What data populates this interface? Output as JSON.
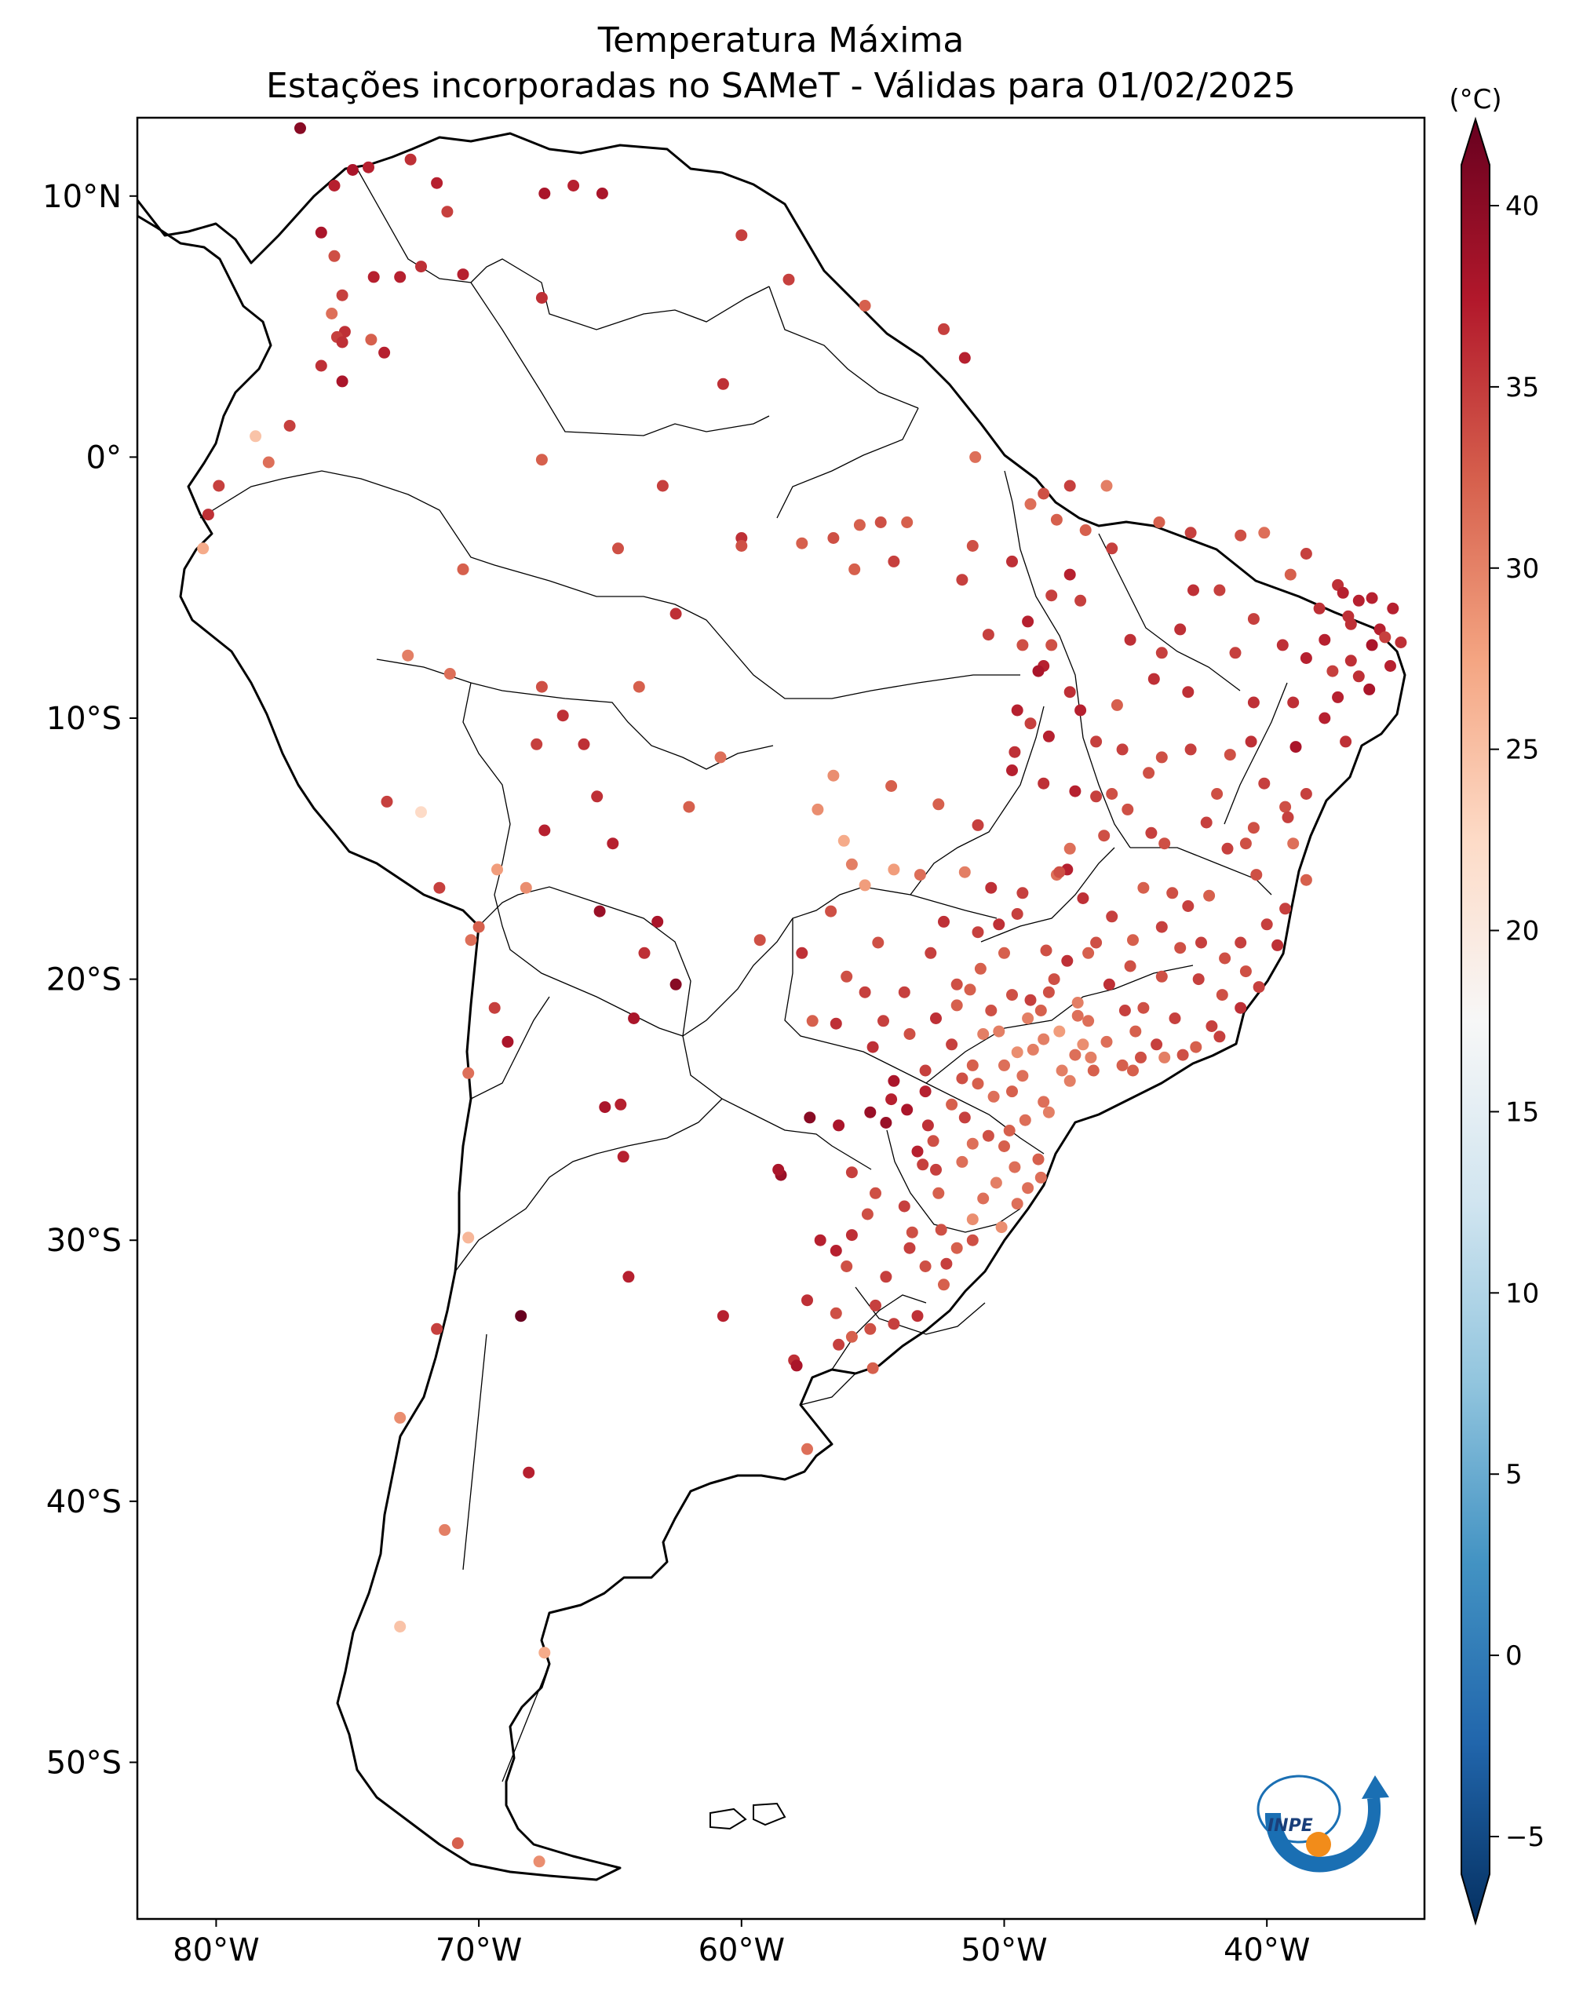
{
  "map": {
    "title_line1": "Temperatura Máxima",
    "title_line2": "Estações incorporadas no SAMeT - Válidas para 01/02/2025",
    "lat_labels": [
      "10°N",
      "0°",
      "10°S",
      "20°S",
      "30°S",
      "40°S",
      "50°S"
    ],
    "lat_values": [
      10,
      0,
      -10,
      -20,
      -30,
      -40,
      -50
    ],
    "lon_labels": [
      "80°W",
      "70°W",
      "60°W",
      "50°W",
      "40°W"
    ],
    "lon_values": [
      -80,
      -70,
      -60,
      -50,
      -40
    ],
    "extent": {
      "lon_min": -83,
      "lon_max": -34,
      "lat_min": -56,
      "lat_max": 13
    },
    "logo_text": "INPE"
  },
  "colorbar": {
    "unit": "(°C)",
    "ticks": [
      40,
      35,
      30,
      25,
      20,
      15,
      10,
      5,
      0,
      -5
    ],
    "min": -5,
    "max": 40,
    "colors": [
      "#053061",
      "#2166ac",
      "#4393c3",
      "#92c5de",
      "#d1e5f0",
      "#f7f7f7",
      "#fddbc7",
      "#f4a582",
      "#d6604d",
      "#b2182b",
      "#67001f"
    ]
  },
  "stations": [
    [
      -76.8,
      12.6,
      38
    ],
    [
      -75.5,
      10.4,
      35
    ],
    [
      -74.8,
      11.0,
      36
    ],
    [
      -74.2,
      11.1,
      35
    ],
    [
      -72.6,
      11.4,
      34
    ],
    [
      -71.6,
      10.5,
      35
    ],
    [
      -67.5,
      10.1,
      36
    ],
    [
      -66.4,
      10.4,
      35
    ],
    [
      -65.3,
      10.1,
      36
    ],
    [
      -71.2,
      9.4,
      33
    ],
    [
      -76.0,
      8.6,
      36
    ],
    [
      -75.5,
      7.7,
      32
    ],
    [
      -73.0,
      6.9,
      35
    ],
    [
      -72.2,
      7.3,
      34
    ],
    [
      -74.0,
      6.9,
      35
    ],
    [
      -70.6,
      7.0,
      35
    ],
    [
      -67.6,
      6.1,
      34
    ],
    [
      -75.6,
      5.5,
      30
    ],
    [
      -75.2,
      6.2,
      33
    ],
    [
      -75.1,
      4.8,
      34
    ],
    [
      -75.4,
      4.6,
      33
    ],
    [
      -76.0,
      3.5,
      34
    ],
    [
      -74.1,
      4.5,
      31
    ],
    [
      -73.6,
      4.0,
      35
    ],
    [
      -75.2,
      2.9,
      36
    ],
    [
      -75.2,
      4.4,
      34
    ],
    [
      -77.2,
      1.2,
      33
    ],
    [
      -78.5,
      0.8,
      24
    ],
    [
      -78.0,
      -0.2,
      30
    ],
    [
      -79.9,
      -1.1,
      33
    ],
    [
      -80.3,
      -2.2,
      34
    ],
    [
      -80.5,
      -3.5,
      26
    ],
    [
      -60.0,
      8.5,
      33
    ],
    [
      -58.2,
      6.8,
      33
    ],
    [
      -55.3,
      5.8,
      31
    ],
    [
      -52.3,
      4.9,
      33
    ],
    [
      -51.5,
      3.8,
      35
    ],
    [
      -51.1,
      0.0,
      30
    ],
    [
      -60.7,
      2.8,
      34
    ],
    [
      -67.6,
      -0.1,
      31
    ],
    [
      -63.0,
      -1.1,
      33
    ],
    [
      -60.0,
      -3.1,
      34
    ],
    [
      -60.0,
      -3.4,
      32
    ],
    [
      -62.5,
      -6.0,
      34
    ],
    [
      -64.7,
      -3.5,
      32
    ],
    [
      -57.7,
      -3.3,
      31
    ],
    [
      -56.5,
      -3.1,
      32
    ],
    [
      -55.5,
      -2.6,
      31
    ],
    [
      -54.7,
      -2.5,
      32
    ],
    [
      -53.7,
      -2.5,
      31
    ],
    [
      -51.2,
      -3.4,
      32
    ],
    [
      -48.5,
      -1.4,
      32
    ],
    [
      -47.5,
      -1.1,
      33
    ],
    [
      -46.1,
      -1.1,
      29
    ],
    [
      -44.1,
      -2.5,
      31
    ],
    [
      -49.7,
      -4.0,
      34
    ],
    [
      -47.5,
      -4.5,
      35
    ],
    [
      -54.2,
      -4.0,
      33
    ],
    [
      -55.7,
      -4.3,
      31
    ],
    [
      -51.6,
      -4.7,
      33
    ],
    [
      -48.2,
      -5.3,
      33
    ],
    [
      -47.1,
      -5.5,
      33
    ],
    [
      -49.1,
      -6.3,
      35
    ],
    [
      -50.6,
      -6.8,
      33
    ],
    [
      -49.3,
      -7.2,
      32
    ],
    [
      -48.2,
      -7.2,
      32
    ],
    [
      -48.5,
      -8.0,
      35
    ],
    [
      -47.5,
      -9.0,
      34
    ],
    [
      -49.0,
      -10.2,
      33
    ],
    [
      -48.3,
      -10.7,
      35
    ],
    [
      -49.6,
      -11.3,
      34
    ],
    [
      -48.5,
      -12.5,
      34
    ],
    [
      -47.3,
      -12.8,
      35
    ],
    [
      -49.7,
      -12.0,
      35
    ],
    [
      -46.5,
      -13.0,
      33
    ],
    [
      -46.2,
      -14.5,
      32
    ],
    [
      -47.5,
      -15.0,
      30
    ],
    [
      -49.3,
      -16.7,
      33
    ],
    [
      -48.0,
      -16.0,
      30
    ],
    [
      -47.6,
      -15.8,
      35
    ],
    [
      -50.2,
      -17.9,
      34
    ],
    [
      -51.0,
      -18.2,
      33
    ],
    [
      -48.4,
      -18.9,
      32
    ],
    [
      -47.6,
      -19.3,
      34
    ],
    [
      -48.3,
      -20.5,
      32
    ],
    [
      -49.0,
      -20.8,
      33
    ],
    [
      -50.5,
      -21.2,
      32
    ],
    [
      -51.3,
      -20.4,
      31
    ],
    [
      -53.2,
      -16.0,
      30
    ],
    [
      -55.8,
      -15.6,
      29
    ],
    [
      -56.1,
      -14.7,
      26
    ],
    [
      -57.1,
      -13.5,
      28
    ],
    [
      -56.5,
      -12.2,
      28
    ],
    [
      -54.3,
      -12.6,
      31
    ],
    [
      -52.5,
      -13.3,
      31
    ],
    [
      -51.0,
      -14.1,
      33
    ],
    [
      -51.5,
      -15.9,
      29
    ],
    [
      -54.2,
      -15.8,
      27
    ],
    [
      -55.3,
      -16.4,
      27
    ],
    [
      -56.6,
      -17.4,
      32
    ],
    [
      -54.8,
      -18.6,
      32
    ],
    [
      -57.7,
      -19.0,
      34
    ],
    [
      -56.0,
      -19.9,
      32
    ],
    [
      -55.3,
      -20.5,
      33
    ],
    [
      -54.6,
      -21.6,
      33
    ],
    [
      -53.6,
      -22.1,
      32
    ],
    [
      -55.0,
      -22.6,
      34
    ],
    [
      -54.2,
      -23.9,
      36
    ],
    [
      -53.0,
      -23.5,
      33
    ],
    [
      -56.4,
      -21.7,
      34
    ],
    [
      -57.3,
      -21.6,
      31
    ],
    [
      -59.3,
      -18.5,
      32
    ],
    [
      -62.0,
      -13.4,
      31
    ],
    [
      -60.8,
      -11.5,
      30
    ],
    [
      -63.9,
      -8.8,
      31
    ],
    [
      -66.8,
      -9.9,
      34
    ],
    [
      -67.8,
      -11.0,
      33
    ],
    [
      -67.6,
      -8.8,
      32
    ],
    [
      -70.6,
      -4.3,
      31
    ],
    [
      -72.7,
      -7.6,
      29
    ],
    [
      -71.1,
      -8.3,
      30
    ],
    [
      -73.5,
      -13.2,
      33
    ],
    [
      -72.2,
      -13.6,
      22
    ],
    [
      -71.5,
      -16.5,
      33
    ],
    [
      -70.0,
      -18.0,
      31
    ],
    [
      -70.3,
      -18.5,
      30
    ],
    [
      -69.3,
      -15.8,
      27
    ],
    [
      -68.2,
      -16.5,
      28
    ],
    [
      -67.5,
      -14.3,
      35
    ],
    [
      -66.0,
      -11.0,
      34
    ],
    [
      -65.5,
      -13.0,
      34
    ],
    [
      -64.9,
      -14.8,
      35
    ],
    [
      -63.2,
      -17.8,
      36
    ],
    [
      -65.4,
      -17.4,
      37
    ],
    [
      -63.7,
      -19.0,
      34
    ],
    [
      -64.1,
      -21.5,
      36
    ],
    [
      -62.5,
      -20.2,
      38
    ],
    [
      -69.4,
      -21.1,
      33
    ],
    [
      -68.9,
      -22.4,
      36
    ],
    [
      -70.4,
      -23.6,
      30
    ],
    [
      -64.6,
      -24.8,
      35
    ],
    [
      -65.2,
      -24.9,
      36
    ],
    [
      -64.5,
      -26.8,
      35
    ],
    [
      -58.5,
      -27.5,
      37
    ],
    [
      -58.6,
      -27.3,
      36
    ],
    [
      -57.4,
      -25.3,
      38
    ],
    [
      -55.8,
      -27.4,
      33
    ],
    [
      -56.3,
      -25.6,
      36
    ],
    [
      -55.1,
      -25.1,
      37
    ],
    [
      -70.4,
      -29.9,
      25
    ],
    [
      -64.3,
      -31.4,
      35
    ],
    [
      -60.7,
      -32.9,
      35
    ],
    [
      -68.4,
      -32.9,
      40
    ],
    [
      -71.6,
      -33.4,
      33
    ],
    [
      -58.0,
      -34.6,
      34
    ],
    [
      -57.5,
      -38.0,
      30
    ],
    [
      -73.0,
      -36.8,
      28
    ],
    [
      -71.3,
      -41.1,
      29
    ],
    [
      -68.1,
      -38.9,
      35
    ],
    [
      -67.5,
      -45.8,
      26
    ],
    [
      -73.0,
      -44.8,
      24
    ],
    [
      -70.8,
      -53.1,
      31
    ],
    [
      -67.7,
      -53.8,
      28
    ],
    [
      -41.0,
      -3.0,
      32
    ],
    [
      -40.1,
      -2.9,
      30
    ],
    [
      -38.5,
      -3.7,
      33
    ],
    [
      -39.1,
      -4.5,
      31
    ],
    [
      -37.3,
      -4.9,
      34
    ],
    [
      -36.5,
      -5.5,
      35
    ],
    [
      -35.2,
      -5.8,
      35
    ],
    [
      -36.9,
      -6.1,
      34
    ],
    [
      -35.7,
      -6.6,
      35
    ],
    [
      -36.0,
      -7.2,
      36
    ],
    [
      -34.9,
      -7.1,
      34
    ],
    [
      -35.3,
      -8.0,
      35
    ],
    [
      -36.5,
      -8.4,
      34
    ],
    [
      -37.5,
      -8.2,
      33
    ],
    [
      -38.5,
      -7.7,
      35
    ],
    [
      -39.4,
      -7.2,
      34
    ],
    [
      -40.5,
      -6.2,
      33
    ],
    [
      -41.8,
      -5.1,
      33
    ],
    [
      -42.8,
      -5.1,
      34
    ],
    [
      -43.3,
      -6.6,
      34
    ],
    [
      -44.0,
      -7.5,
      33
    ],
    [
      -45.2,
      -7.0,
      34
    ],
    [
      -40.5,
      -9.4,
      34
    ],
    [
      -39.0,
      -9.4,
      34
    ],
    [
      -37.8,
      -10.0,
      35
    ],
    [
      -37.0,
      -10.9,
      34
    ],
    [
      -38.5,
      -12.9,
      33
    ],
    [
      -39.3,
      -13.4,
      32
    ],
    [
      -40.8,
      -14.8,
      32
    ],
    [
      -39.0,
      -14.8,
      30
    ],
    [
      -41.9,
      -12.9,
      32
    ],
    [
      -42.9,
      -11.2,
      33
    ],
    [
      -44.5,
      -12.1,
      32
    ],
    [
      -45.3,
      -13.5,
      32
    ],
    [
      -43.6,
      -16.7,
      32
    ],
    [
      -42.2,
      -16.8,
      31
    ],
    [
      -40.4,
      -16.0,
      32
    ],
    [
      -40.0,
      -17.9,
      33
    ],
    [
      -39.6,
      -18.7,
      34
    ],
    [
      -40.3,
      -20.3,
      33
    ],
    [
      -41.6,
      -19.2,
      32
    ],
    [
      -41.0,
      -21.1,
      34
    ],
    [
      -42.1,
      -21.8,
      33
    ],
    [
      -43.2,
      -22.9,
      32
    ],
    [
      -44.2,
      -22.5,
      33
    ],
    [
      -45.4,
      -21.2,
      33
    ],
    [
      -46.0,
      -20.2,
      34
    ],
    [
      -44.0,
      -19.9,
      32
    ],
    [
      -43.3,
      -18.8,
      32
    ],
    [
      -42.6,
      -20.0,
      33
    ],
    [
      -45.1,
      -18.5,
      31
    ],
    [
      -46.5,
      -18.6,
      32
    ],
    [
      -47.0,
      -16.9,
      34
    ],
    [
      -44.7,
      -16.5,
      31
    ],
    [
      -46.8,
      -21.6,
      30
    ],
    [
      -47.3,
      -22.9,
      30
    ],
    [
      -46.6,
      -23.5,
      31
    ],
    [
      -47.5,
      -23.9,
      29
    ],
    [
      -48.5,
      -22.3,
      29
    ],
    [
      -49.5,
      -22.8,
      28
    ],
    [
      -50.0,
      -23.3,
      30
    ],
    [
      -51.2,
      -23.3,
      31
    ],
    [
      -52.0,
      -22.5,
      33
    ],
    [
      -51.6,
      -23.8,
      32
    ],
    [
      -50.4,
      -24.5,
      30
    ],
    [
      -49.2,
      -25.4,
      30
    ],
    [
      -48.7,
      -26.9,
      31
    ],
    [
      -49.1,
      -28.0,
      30
    ],
    [
      -48.6,
      -27.6,
      30
    ],
    [
      -50.3,
      -27.8,
      29
    ],
    [
      -51.2,
      -26.3,
      30
    ],
    [
      -52.7,
      -26.2,
      32
    ],
    [
      -53.1,
      -27.1,
      33
    ],
    [
      -52.5,
      -28.2,
      31
    ],
    [
      -51.2,
      -29.2,
      28
    ],
    [
      -51.2,
      -30.0,
      32
    ],
    [
      -52.2,
      -30.9,
      33
    ],
    [
      -53.5,
      -29.7,
      32
    ],
    [
      -54.9,
      -28.2,
      32
    ],
    [
      -55.8,
      -29.8,
      34
    ],
    [
      -56.4,
      -30.4,
      35
    ],
    [
      -57.0,
      -30.0,
      35
    ],
    [
      -54.5,
      -31.4,
      33
    ],
    [
      -52.3,
      -31.7,
      31
    ],
    [
      -53.3,
      -32.9,
      34
    ],
    [
      -54.2,
      -33.2,
      33
    ],
    [
      -55.1,
      -33.4,
      32
    ],
    [
      -56.3,
      -34.0,
      33
    ],
    [
      -55.0,
      -34.9,
      31
    ],
    [
      -56.4,
      -32.8,
      32
    ],
    [
      -57.9,
      -34.8,
      36
    ],
    [
      -57.5,
      -32.3,
      34
    ],
    [
      -52.4,
      -29.6,
      32
    ],
    [
      -50.1,
      -29.5,
      28
    ],
    [
      -49.5,
      -28.6,
      30
    ],
    [
      -47.9,
      -15.9,
      32
    ],
    [
      -44.0,
      -11.5,
      32
    ],
    [
      -40.6,
      -10.9,
      34
    ],
    [
      -41.5,
      -15.0,
      33
    ],
    [
      -43.9,
      -14.8,
      32
    ],
    [
      -45.7,
      -9.5,
      31
    ],
    [
      -43.0,
      -9.0,
      34
    ],
    [
      -44.3,
      -8.5,
      34
    ],
    [
      -41.2,
      -7.5,
      33
    ],
    [
      -38.0,
      -5.8,
      34
    ],
    [
      -36.0,
      -5.4,
      35
    ],
    [
      -37.1,
      -5.2,
      35
    ],
    [
      -36.8,
      -6.4,
      34
    ],
    [
      -35.5,
      -6.9,
      33
    ],
    [
      -37.8,
      -7.0,
      35
    ],
    [
      -42.9,
      -2.9,
      33
    ],
    [
      -45.9,
      -3.5,
      33
    ],
    [
      -46.9,
      -2.8,
      31
    ],
    [
      -48.0,
      -2.4,
      31
    ],
    [
      -49.0,
      -1.8,
      30
    ],
    [
      -46.5,
      -10.9,
      33
    ],
    [
      -47.1,
      -9.7,
      35
    ],
    [
      -48.7,
      -8.2,
      36
    ],
    [
      -49.5,
      -9.7,
      35
    ],
    [
      -45.5,
      -11.2,
      33
    ],
    [
      -45.9,
      -12.9,
      32
    ],
    [
      -44.4,
      -14.4,
      33
    ],
    [
      -42.3,
      -14.0,
      33
    ],
    [
      -40.1,
      -12.5,
      33
    ],
    [
      -41.4,
      -11.4,
      32
    ],
    [
      -38.9,
      -11.1,
      36
    ],
    [
      -37.3,
      -9.2,
      35
    ],
    [
      -36.1,
      -8.9,
      36
    ],
    [
      -36.8,
      -7.8,
      34
    ],
    [
      -39.2,
      -13.8,
      33
    ],
    [
      -46.8,
      -19.0,
      31
    ],
    [
      -45.9,
      -17.6,
      33
    ],
    [
      -44.0,
      -18.0,
      33
    ],
    [
      -45.2,
      -19.5,
      32
    ],
    [
      -43.0,
      -17.2,
      33
    ],
    [
      -41.0,
      -18.6,
      33
    ],
    [
      -43.5,
      -21.5,
      33
    ],
    [
      -44.7,
      -21.1,
      32
    ],
    [
      -45.0,
      -22.0,
      31
    ],
    [
      -46.1,
      -22.4,
      30
    ],
    [
      -47.2,
      -21.4,
      30
    ],
    [
      -48.6,
      -21.2,
      31
    ],
    [
      -49.7,
      -20.6,
      32
    ],
    [
      -50.9,
      -19.6,
      31
    ],
    [
      -50.0,
      -19.0,
      31
    ],
    [
      -49.5,
      -17.5,
      33
    ],
    [
      -50.5,
      -16.5,
      34
    ],
    [
      -52.3,
      -17.8,
      34
    ],
    [
      -52.8,
      -19.0,
      33
    ],
    [
      -51.8,
      -20.2,
      32
    ],
    [
      -52.6,
      -21.5,
      34
    ],
    [
      -53.8,
      -20.5,
      33
    ],
    [
      -53.0,
      -24.3,
      35
    ],
    [
      -53.7,
      -25.0,
      36
    ],
    [
      -54.5,
      -25.5,
      37
    ],
    [
      -54.3,
      -24.6,
      35
    ],
    [
      -52.0,
      -24.8,
      31
    ],
    [
      -51.5,
      -25.3,
      33
    ],
    [
      -50.6,
      -26.0,
      32
    ],
    [
      -49.8,
      -25.8,
      31
    ],
    [
      -48.5,
      -24.7,
      30
    ],
    [
      -49.3,
      -23.7,
      30
    ],
    [
      -50.8,
      -22.1,
      29
    ],
    [
      -51.8,
      -21.0,
      31
    ],
    [
      -52.6,
      -27.3,
      33
    ],
    [
      -51.6,
      -27.0,
      30
    ],
    [
      -50.0,
      -26.4,
      31
    ],
    [
      -49.6,
      -27.2,
      30
    ],
    [
      -50.8,
      -28.4,
      30
    ],
    [
      -53.8,
      -28.7,
      33
    ],
    [
      -55.2,
      -29.0,
      32
    ],
    [
      -56.0,
      -31.0,
      32
    ],
    [
      -53.0,
      -31.0,
      32
    ],
    [
      -51.8,
      -30.3,
      31
    ],
    [
      -53.6,
      -30.3,
      33
    ],
    [
      -55.8,
      -33.7,
      31
    ],
    [
      -54.9,
      -32.5,
      33
    ],
    [
      -47.9,
      -22.0,
      27
    ],
    [
      -47.0,
      -22.5,
      28
    ],
    [
      -46.7,
      -23.0,
      29
    ],
    [
      -45.5,
      -23.3,
      31
    ],
    [
      -44.8,
      -23.0,
      32
    ],
    [
      -42.7,
      -22.6,
      31
    ],
    [
      -41.8,
      -22.2,
      33
    ],
    [
      -40.8,
      -19.7,
      32
    ],
    [
      -41.7,
      -20.6,
      32
    ],
    [
      -42.5,
      -18.6,
      33
    ],
    [
      -40.5,
      -14.2,
      32
    ],
    [
      -38.5,
      -16.2,
      31
    ],
    [
      -39.3,
      -17.3,
      33
    ],
    [
      -43.9,
      -23.0,
      29
    ],
    [
      -45.1,
      -23.5,
      31
    ],
    [
      -47.8,
      -23.5,
      29
    ],
    [
      -48.3,
      -25.1,
      29
    ],
    [
      -49.7,
      -24.3,
      31
    ],
    [
      -51.0,
      -24.0,
      31
    ],
    [
      -52.9,
      -25.6,
      34
    ],
    [
      -53.3,
      -26.6,
      35
    ],
    [
      -48.1,
      -20.0,
      32
    ],
    [
      -47.2,
      -20.9,
      29
    ],
    [
      -48.9,
      -22.7,
      29
    ],
    [
      -50.2,
      -22.0,
      29
    ],
    [
      -49.1,
      -21.5,
      29
    ]
  ]
}
